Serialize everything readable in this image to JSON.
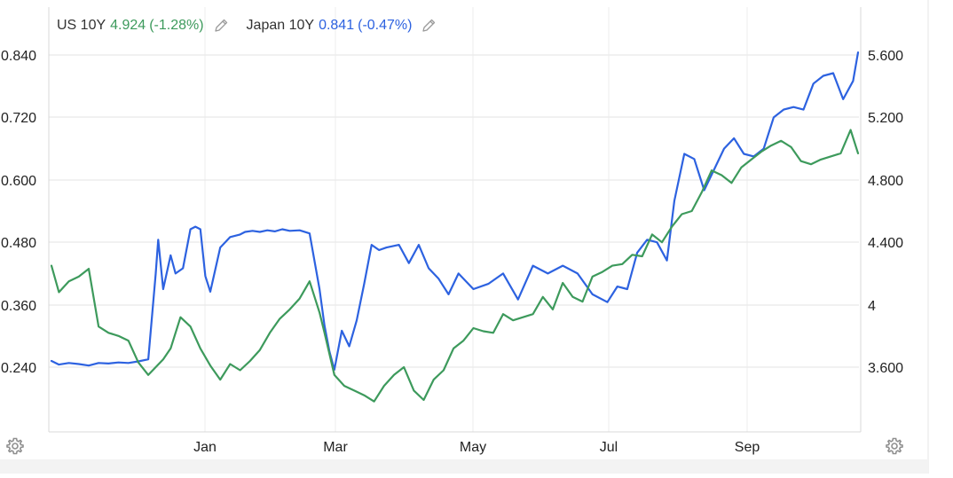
{
  "legend": [
    {
      "name": "US 10Y",
      "value": "4.924",
      "change": "(-1.28%)",
      "color": "#3d9a5c"
    },
    {
      "name": "Japan 10Y",
      "value": "0.841",
      "change": "(-0.47%)",
      "color": "#2d62e0"
    }
  ],
  "colors": {
    "us": "#3d9a5c",
    "japan": "#2d62e0",
    "grid": "#e3e3e3",
    "axis_text": "#222222",
    "icon": "#9a9a9a"
  },
  "icons": {
    "edit": "pencil-icon",
    "settings": "gear-icon"
  },
  "chart_data": {
    "type": "line",
    "title": "",
    "xlabel": "",
    "ylabel": "",
    "grid": true,
    "legend_position": "top-left",
    "x_ticks": [
      "Jan",
      "Mar",
      "May",
      "Jul",
      "Sep"
    ],
    "y_left": {
      "series": "Japan 10Y",
      "ticks": [
        "0.840",
        "0.720",
        "0.600",
        "0.480",
        "0.360",
        "0.240"
      ],
      "range": [
        0.15,
        0.89
      ]
    },
    "y_right": {
      "series": "US 10Y",
      "ticks": [
        "5.600",
        "5.200",
        "4.800",
        "4.400",
        "4",
        "3.600"
      ],
      "range": [
        3.3,
        5.77
      ]
    },
    "series": [
      {
        "name": "Japan 10Y",
        "axis": "left",
        "color": "#2d62e0",
        "x": [
          "Nov 15",
          "Nov 18",
          "Nov 22",
          "Nov 26",
          "Nov 30",
          "Dec 4",
          "Dec 8",
          "Dec 12",
          "Dec 16",
          "Dec 20",
          "Dec 24",
          "Dec 27",
          "Dec 28",
          "Dec 30",
          "Jan 2",
          "Jan 4",
          "Jan 7",
          "Jan 10",
          "Jan 12",
          "Jan 14",
          "Jan 16",
          "Jan 18",
          "Jan 22",
          "Jan 26",
          "Jan 30",
          "Feb 1",
          "Feb 4",
          "Feb 7",
          "Feb 10",
          "Feb 13",
          "Feb 16",
          "Feb 19",
          "Feb 23",
          "Feb 27",
          "Mar 3",
          "Mar 5",
          "Mar 7",
          "Mar 9",
          "Mar 12",
          "Mar 15",
          "Mar 18",
          "Mar 21",
          "Mar 24",
          "Mar 27",
          "Mar 30",
          "Apr 4",
          "Apr 8",
          "Apr 12",
          "Apr 16",
          "Apr 20",
          "Apr 24",
          "Apr 28",
          "May 4",
          "May 10",
          "May 16",
          "May 22",
          "May 28",
          "Jun 3",
          "Jun 9",
          "Jun 15",
          "Jun 21",
          "Jun 27",
          "Jul 1",
          "Jul 5",
          "Jul 9",
          "Jul 13",
          "Jul 17",
          "Jul 21",
          "Jul 24",
          "Jul 28",
          "Aug 1",
          "Aug 5",
          "Aug 9",
          "Aug 13",
          "Aug 17",
          "Aug 21",
          "Aug 25",
          "Aug 29",
          "Sep 2",
          "Sep 6",
          "Sep 10",
          "Sep 14",
          "Sep 18",
          "Sep 22",
          "Sep 26",
          "Sep 30",
          "Oct 4",
          "Oct 6"
        ],
        "values": [
          0.252,
          0.245,
          0.248,
          0.246,
          0.243,
          0.248,
          0.247,
          0.249,
          0.248,
          0.251,
          0.255,
          0.42,
          0.485,
          0.39,
          0.455,
          0.42,
          0.43,
          0.505,
          0.51,
          0.505,
          0.415,
          0.385,
          0.47,
          0.49,
          0.495,
          0.5,
          0.502,
          0.5,
          0.503,
          0.501,
          0.505,
          0.502,
          0.503,
          0.497,
          0.39,
          0.32,
          0.27,
          0.235,
          0.31,
          0.28,
          0.33,
          0.4,
          0.475,
          0.465,
          0.47,
          0.475,
          0.44,
          0.475,
          0.43,
          0.41,
          0.38,
          0.42,
          0.39,
          0.4,
          0.42,
          0.37,
          0.435,
          0.42,
          0.435,
          0.42,
          0.38,
          0.365,
          0.395,
          0.39,
          0.46,
          0.485,
          0.48,
          0.445,
          0.56,
          0.65,
          0.64,
          0.58,
          0.62,
          0.66,
          0.68,
          0.65,
          0.645,
          0.66,
          0.72,
          0.735,
          0.74,
          0.735,
          0.785,
          0.8,
          0.805,
          0.755,
          0.79,
          0.845
        ]
      },
      {
        "name": "US 10Y",
        "axis": "right",
        "color": "#3d9a5c",
        "x": [
          "Nov 15",
          "Nov 18",
          "Nov 22",
          "Nov 26",
          "Nov 30",
          "Dec 4",
          "Dec 8",
          "Dec 12",
          "Dec 16",
          "Dec 20",
          "Dec 24",
          "Dec 27",
          "Dec 30",
          "Jan 2",
          "Jan 6",
          "Jan 10",
          "Jan 14",
          "Jan 18",
          "Jan 22",
          "Jan 26",
          "Jan 30",
          "Feb 3",
          "Feb 7",
          "Feb 11",
          "Feb 15",
          "Feb 19",
          "Feb 23",
          "Feb 27",
          "Mar 3",
          "Mar 5",
          "Mar 9",
          "Mar 13",
          "Mar 17",
          "Mar 21",
          "Mar 25",
          "Mar 29",
          "Apr 2",
          "Apr 6",
          "Apr 10",
          "Apr 14",
          "Apr 18",
          "Apr 22",
          "Apr 26",
          "Apr 30",
          "May 4",
          "May 8",
          "May 12",
          "May 16",
          "May 20",
          "May 24",
          "May 28",
          "Jun 1",
          "Jun 5",
          "Jun 9",
          "Jun 13",
          "Jun 17",
          "Jun 21",
          "Jun 25",
          "Jun 29",
          "Jul 3",
          "Jul 7",
          "Jul 11",
          "Jul 15",
          "Jul 19",
          "Jul 23",
          "Jul 27",
          "Jul 31",
          "Aug 4",
          "Aug 8",
          "Aug 12",
          "Aug 16",
          "Aug 20",
          "Aug 24",
          "Aug 28",
          "Sep 1",
          "Sep 5",
          "Sep 9",
          "Sep 13",
          "Sep 17",
          "Sep 21",
          "Sep 25",
          "Sep 29",
          "Oct 3",
          "Oct 6"
        ],
        "values": [
          4.25,
          4.08,
          4.15,
          4.18,
          4.23,
          3.86,
          3.82,
          3.8,
          3.77,
          3.63,
          3.55,
          3.6,
          3.65,
          3.72,
          3.92,
          3.86,
          3.72,
          3.61,
          3.52,
          3.62,
          3.58,
          3.64,
          3.71,
          3.82,
          3.91,
          3.97,
          4.04,
          4.15,
          3.95,
          3.82,
          3.55,
          3.48,
          3.45,
          3.42,
          3.38,
          3.48,
          3.55,
          3.6,
          3.45,
          3.39,
          3.52,
          3.58,
          3.72,
          3.77,
          3.85,
          3.83,
          3.82,
          3.94,
          3.9,
          3.92,
          3.94,
          4.05,
          3.97,
          4.14,
          4.05,
          4.02,
          4.18,
          4.21,
          4.25,
          4.26,
          4.32,
          4.31,
          4.45,
          4.4,
          4.5,
          4.58,
          4.6,
          4.72,
          4.86,
          4.83,
          4.78,
          4.88,
          4.93,
          4.98,
          5.02,
          5.05,
          5.01,
          4.92,
          4.9,
          4.93,
          4.95,
          4.97,
          5.12,
          4.97
        ]
      }
    ]
  }
}
